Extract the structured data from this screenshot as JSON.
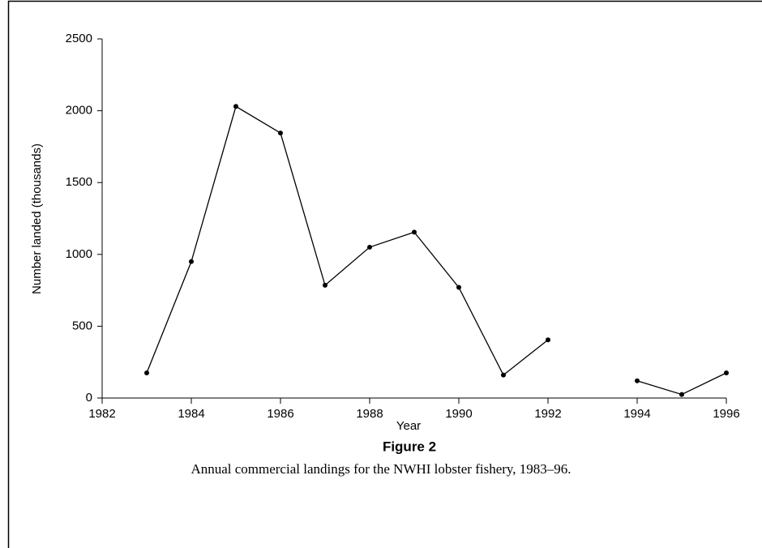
{
  "chart_data": {
    "type": "line",
    "title": "Figure 2",
    "subtitle": "Annual commercial landings for the NWHI lobster fishery, 1983–96.",
    "x_label": "Year",
    "y_label": "Number landed (thousands)",
    "x": [
      1983,
      1984,
      1985,
      1986,
      1987,
      1988,
      1989,
      1990,
      1991,
      1992,
      1993,
      1994,
      1995,
      1996
    ],
    "values": [
      175,
      950,
      2030,
      1845,
      785,
      1050,
      1155,
      770,
      160,
      405,
      null,
      120,
      25,
      175
    ],
    "color": "#000000",
    "xlim": [
      1982,
      1996
    ],
    "xticks": [
      1982,
      1984,
      1986,
      1988,
      1990,
      1992,
      1994,
      1996
    ],
    "ylim": [
      0,
      2500
    ],
    "yticks": [
      0,
      500,
      1000,
      1500,
      2000,
      2500
    ],
    "grid": false
  }
}
